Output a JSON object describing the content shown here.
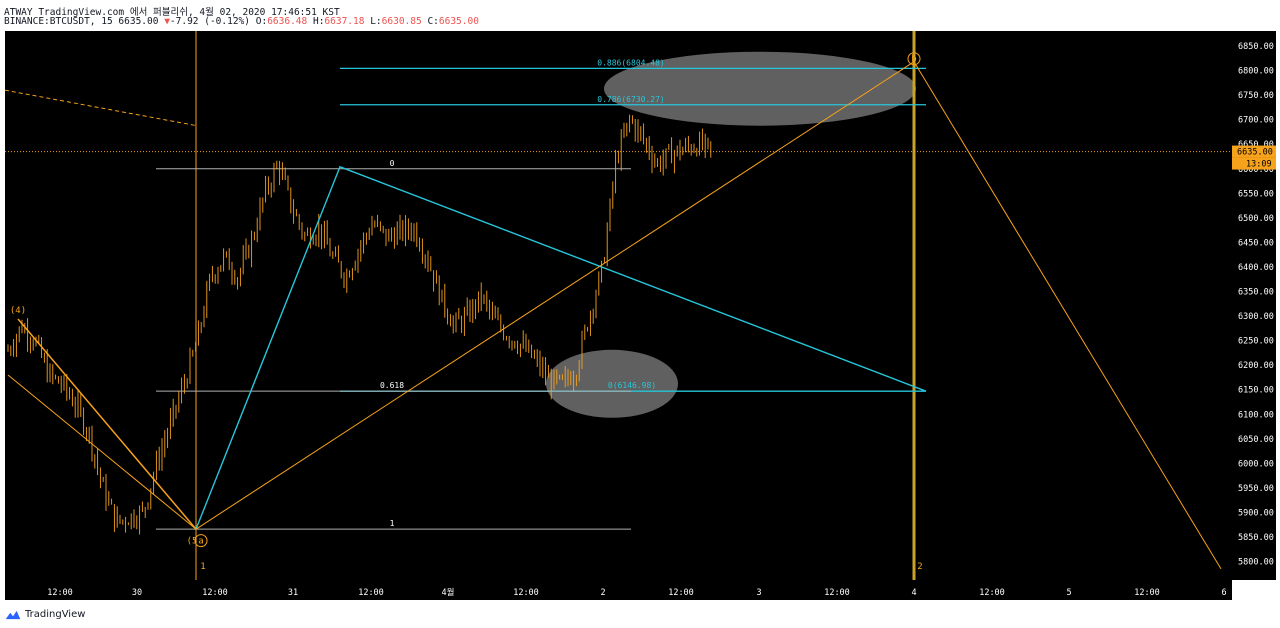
{
  "header": {
    "line1": "ATWAY TradingView.com 에서 퍼블리쉬, 4월 02, 2020 17:46:51 KST",
    "symbol": "BINANCE:BTCUSDT, 15",
    "last_price": "6635.00",
    "change_arrow": "▼",
    "change": "-7.92 (-0.12%)",
    "o_label": "O:",
    "o_value": "6636.48",
    "h_label": "H:",
    "h_value": "6637.18",
    "l_label": "L:",
    "l_value": "6630.85",
    "c_label": "C:",
    "c_value": "6635.00"
  },
  "footer": {
    "brand": "TradingView"
  },
  "colors": {
    "background": "#000000",
    "candle": "#f7a21b",
    "fib": "#26c6da",
    "wave": "#f7a21b",
    "grid_text": "#ffffff",
    "price_tag": "#f7a21b",
    "ellipse": "#808080"
  },
  "chart_data": {
    "type": "candlestick",
    "title": "",
    "xlabel": "",
    "ylabel": "",
    "ylim": [
      5775,
      6875
    ],
    "y_ticks": [
      "6850.00",
      "6800.00",
      "6750.00",
      "6700.00",
      "6650.00",
      "6600.00",
      "6550.00",
      "6500.00",
      "6450.00",
      "6400.00",
      "6350.00",
      "6300.00",
      "6250.00",
      "6200.00",
      "6150.00",
      "6100.00",
      "6050.00",
      "6000.00",
      "5950.00",
      "5900.00",
      "5850.00",
      "5800.00"
    ],
    "x_ticks": [
      "12:00",
      "30",
      "12:00",
      "31",
      "12:00",
      "4월",
      "12:00",
      "2",
      "12:00",
      "3",
      "12:00",
      "4",
      "12:00",
      "5",
      "12:00",
      "6"
    ],
    "current_price": {
      "label": "6635.00",
      "value": 6635.0,
      "countdown": "13:09"
    },
    "price_path": [
      6230,
      6280,
      6250,
      6180,
      6160,
      6120,
      6060,
      5950,
      5880,
      5890,
      5900,
      6000,
      6080,
      6160,
      6250,
      6380,
      6420,
      6380,
      6450,
      6550,
      6610,
      6520,
      6460,
      6480,
      6420,
      6380,
      6440,
      6490,
      6460,
      6470,
      6480,
      6420,
      6340,
      6280,
      6300,
      6340,
      6290,
      6260,
      6240,
      6210,
      6170,
      6160,
      6190,
      6300,
      6400,
      6620,
      6700,
      6660,
      6610,
      6630,
      6640,
      6650,
      6635
    ],
    "fib_retracement_top": [
      {
        "label": "0.886(6804.48)",
        "value": 6804.48
      },
      {
        "label": "0.786(6730.27)",
        "value": 6730.27
      },
      {
        "label": "0(6146.98)",
        "value": 6146.98
      }
    ],
    "fib_retracement_left": [
      {
        "label": "0",
        "value": 6600
      },
      {
        "label": "0.618",
        "value": 6146.98
      },
      {
        "label": "1",
        "value": 5866
      }
    ],
    "wave_labels": [
      {
        "label": "(4)",
        "value": 6294
      },
      {
        "label": "(5",
        "value": 5863
      },
      {
        "label": "a",
        "value": 5863
      },
      {
        "label": "b",
        "value": 6818
      },
      {
        "label": "1",
        "value": 5791
      },
      {
        "label": "2",
        "value": 5791
      }
    ]
  }
}
